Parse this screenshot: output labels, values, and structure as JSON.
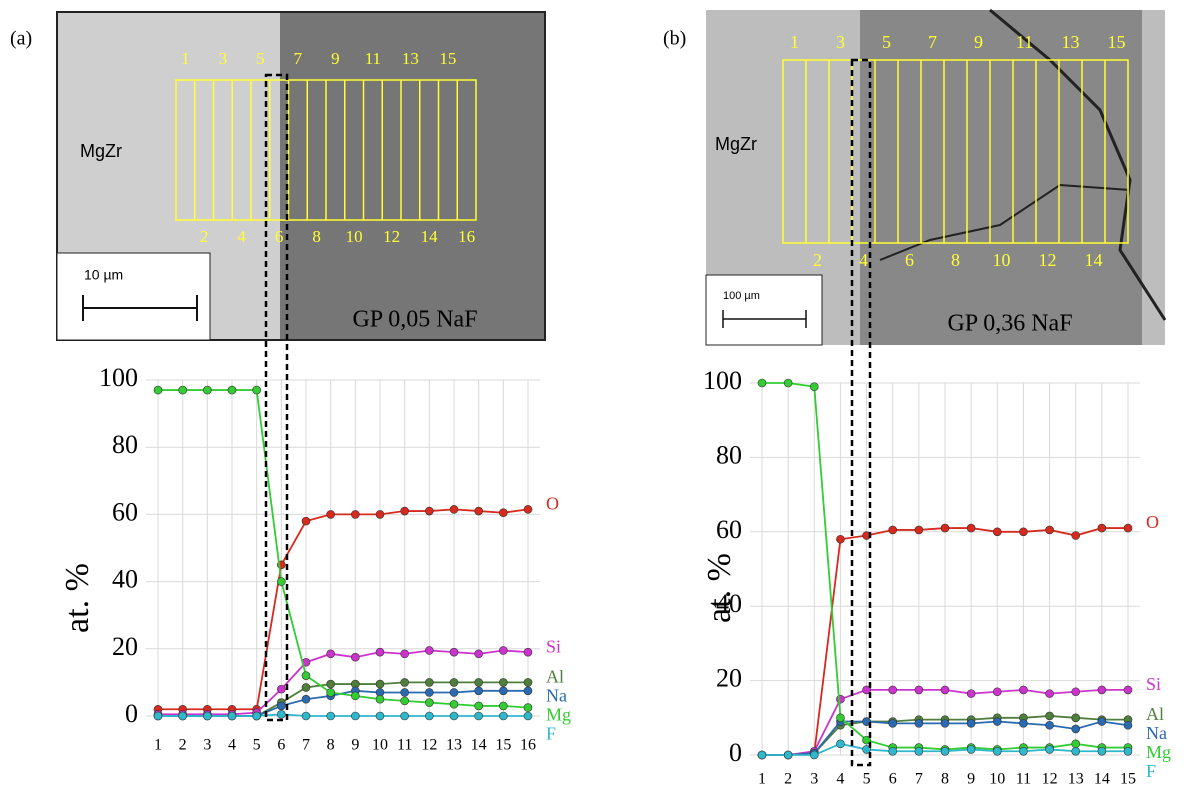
{
  "chart_data": [
    {
      "type": "line",
      "panel": "(a)",
      "ylabel": "at. %",
      "categories": [
        "1",
        "2",
        "3",
        "4",
        "5",
        "6",
        "7",
        "8",
        "9",
        "10",
        "11",
        "12",
        "13",
        "14",
        "15",
        "16"
      ],
      "ylim": [
        0,
        100
      ],
      "yticks": [
        0,
        20,
        40,
        60,
        80,
        100
      ],
      "grid": true,
      "series": [
        {
          "name": "O",
          "color": "#d62a1e",
          "values": [
            2,
            2,
            2,
            2,
            2,
            45,
            58,
            60,
            60,
            60,
            61,
            61,
            61.5,
            61,
            60.5,
            61.5
          ]
        },
        {
          "name": "Si",
          "color": "#cc33cc",
          "values": [
            0.5,
            0.5,
            0.5,
            0.5,
            1,
            8,
            16,
            18.5,
            17.5,
            19,
            18.5,
            19.5,
            19,
            18.5,
            19.5,
            19
          ]
        },
        {
          "name": "Al",
          "color": "#4f7f3a",
          "values": [
            0,
            0,
            0,
            0,
            0,
            4,
            8.5,
            9.5,
            9.5,
            9.5,
            10,
            10,
            10,
            10,
            10,
            10
          ]
        },
        {
          "name": "Na",
          "color": "#2a6ab0",
          "values": [
            0,
            0,
            0,
            0,
            0,
            3,
            5,
            6,
            7.5,
            7,
            7,
            7,
            7,
            7.5,
            7.5,
            7.5
          ]
        },
        {
          "name": "Mg",
          "color": "#33cc33",
          "values": [
            97,
            97,
            97,
            97,
            97,
            40,
            12,
            7,
            6,
            5,
            4.5,
            4,
            3.5,
            3,
            3,
            2.5
          ]
        },
        {
          "name": "F",
          "color": "#2fb8cc",
          "values": [
            0,
            0,
            0,
            0,
            0,
            0.5,
            0,
            0,
            0,
            0,
            0,
            0,
            0,
            0,
            0,
            0
          ]
        }
      ]
    },
    {
      "type": "line",
      "panel": "(b)",
      "ylabel": "at. %",
      "categories": [
        "1",
        "2",
        "3",
        "4",
        "5",
        "6",
        "7",
        "8",
        "9",
        "10",
        "11",
        "12",
        "13",
        "14",
        "15"
      ],
      "ylim": [
        0,
        100
      ],
      "yticks": [
        0,
        20,
        40,
        60,
        80,
        100
      ],
      "grid": true,
      "series": [
        {
          "name": "O",
          "color": "#d62a1e",
          "values": [
            0,
            0,
            0.5,
            58,
            59,
            60.5,
            60.5,
            61,
            61,
            60,
            60,
            60.5,
            59,
            61,
            61
          ]
        },
        {
          "name": "Si",
          "color": "#cc33cc",
          "values": [
            0,
            0,
            1,
            15,
            17.5,
            17.5,
            17.5,
            17.5,
            16.5,
            17,
            17.5,
            16.5,
            17,
            17.5,
            17.5
          ]
        },
        {
          "name": "Al",
          "color": "#4f7f3a",
          "values": [
            0,
            0,
            0.5,
            8,
            9,
            9,
            9.5,
            9.5,
            9.5,
            10,
            10,
            10.5,
            10,
            9.5,
            9.5
          ]
        },
        {
          "name": "Na",
          "color": "#2a6ab0",
          "values": [
            0,
            0,
            0.5,
            9,
            9,
            8.5,
            8.5,
            8.5,
            8.5,
            9,
            8.5,
            8,
            7,
            9,
            8
          ]
        },
        {
          "name": "Mg",
          "color": "#33cc33",
          "values": [
            100,
            100,
            99,
            10,
            4,
            2,
            2,
            1.5,
            2,
            1.5,
            2,
            2,
            3,
            2,
            2
          ]
        },
        {
          "name": "F",
          "color": "#2fb8cc",
          "values": [
            0,
            0,
            0,
            3,
            1.5,
            1,
            1,
            1,
            1.5,
            1,
            1,
            1.5,
            1,
            1,
            1
          ]
        }
      ]
    }
  ],
  "images": [
    {
      "material": "MgZr",
      "scale_bar": "10 µm",
      "sample": "GP 0,05 NaF",
      "zones": [
        1,
        2,
        3,
        4,
        5,
        6,
        7,
        8,
        9,
        10,
        11,
        12,
        13,
        14,
        15,
        16
      ]
    },
    {
      "material": "MgZr",
      "scale_bar": "100 µm",
      "sample": "GP 0,36 NaF",
      "zones": [
        1,
        2,
        3,
        4,
        5,
        6,
        7,
        8,
        9,
        10,
        11,
        12,
        13,
        14,
        15
      ]
    }
  ]
}
